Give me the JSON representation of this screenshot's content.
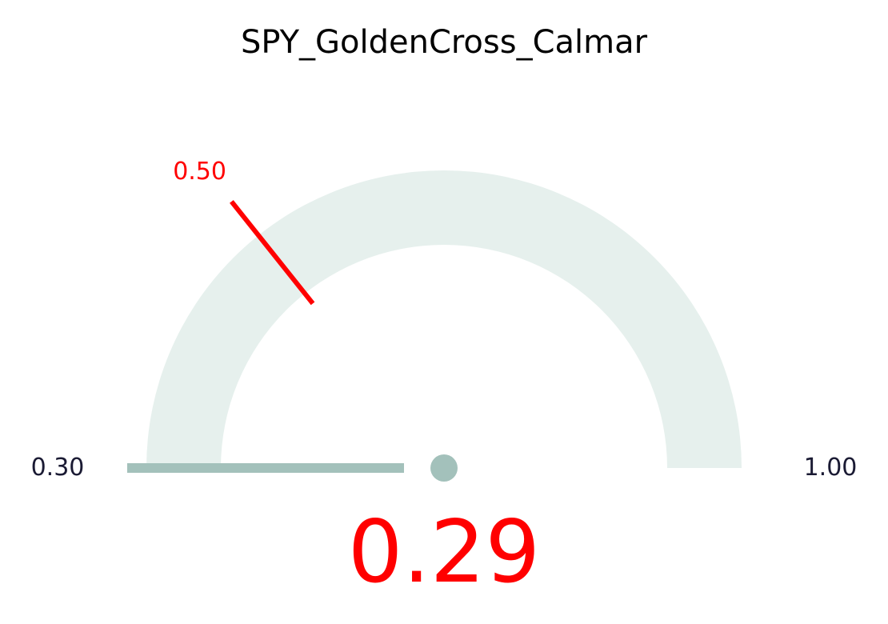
{
  "chart_data": {
    "type": "gauge",
    "title": "SPY_GoldenCross_Calmar",
    "min": 0.3,
    "max": 1.0,
    "min_label": "0.30",
    "max_label": "1.00",
    "value": 0.29,
    "value_label": "0.29",
    "threshold": 0.5,
    "threshold_label": "0.50",
    "colors": {
      "track": "#e6f0ed",
      "needle": "#a3c1bb",
      "threshold": "#ff0000",
      "value_text": "#ff0000",
      "end_labels": "#1a1a33",
      "title": "#000000"
    }
  }
}
